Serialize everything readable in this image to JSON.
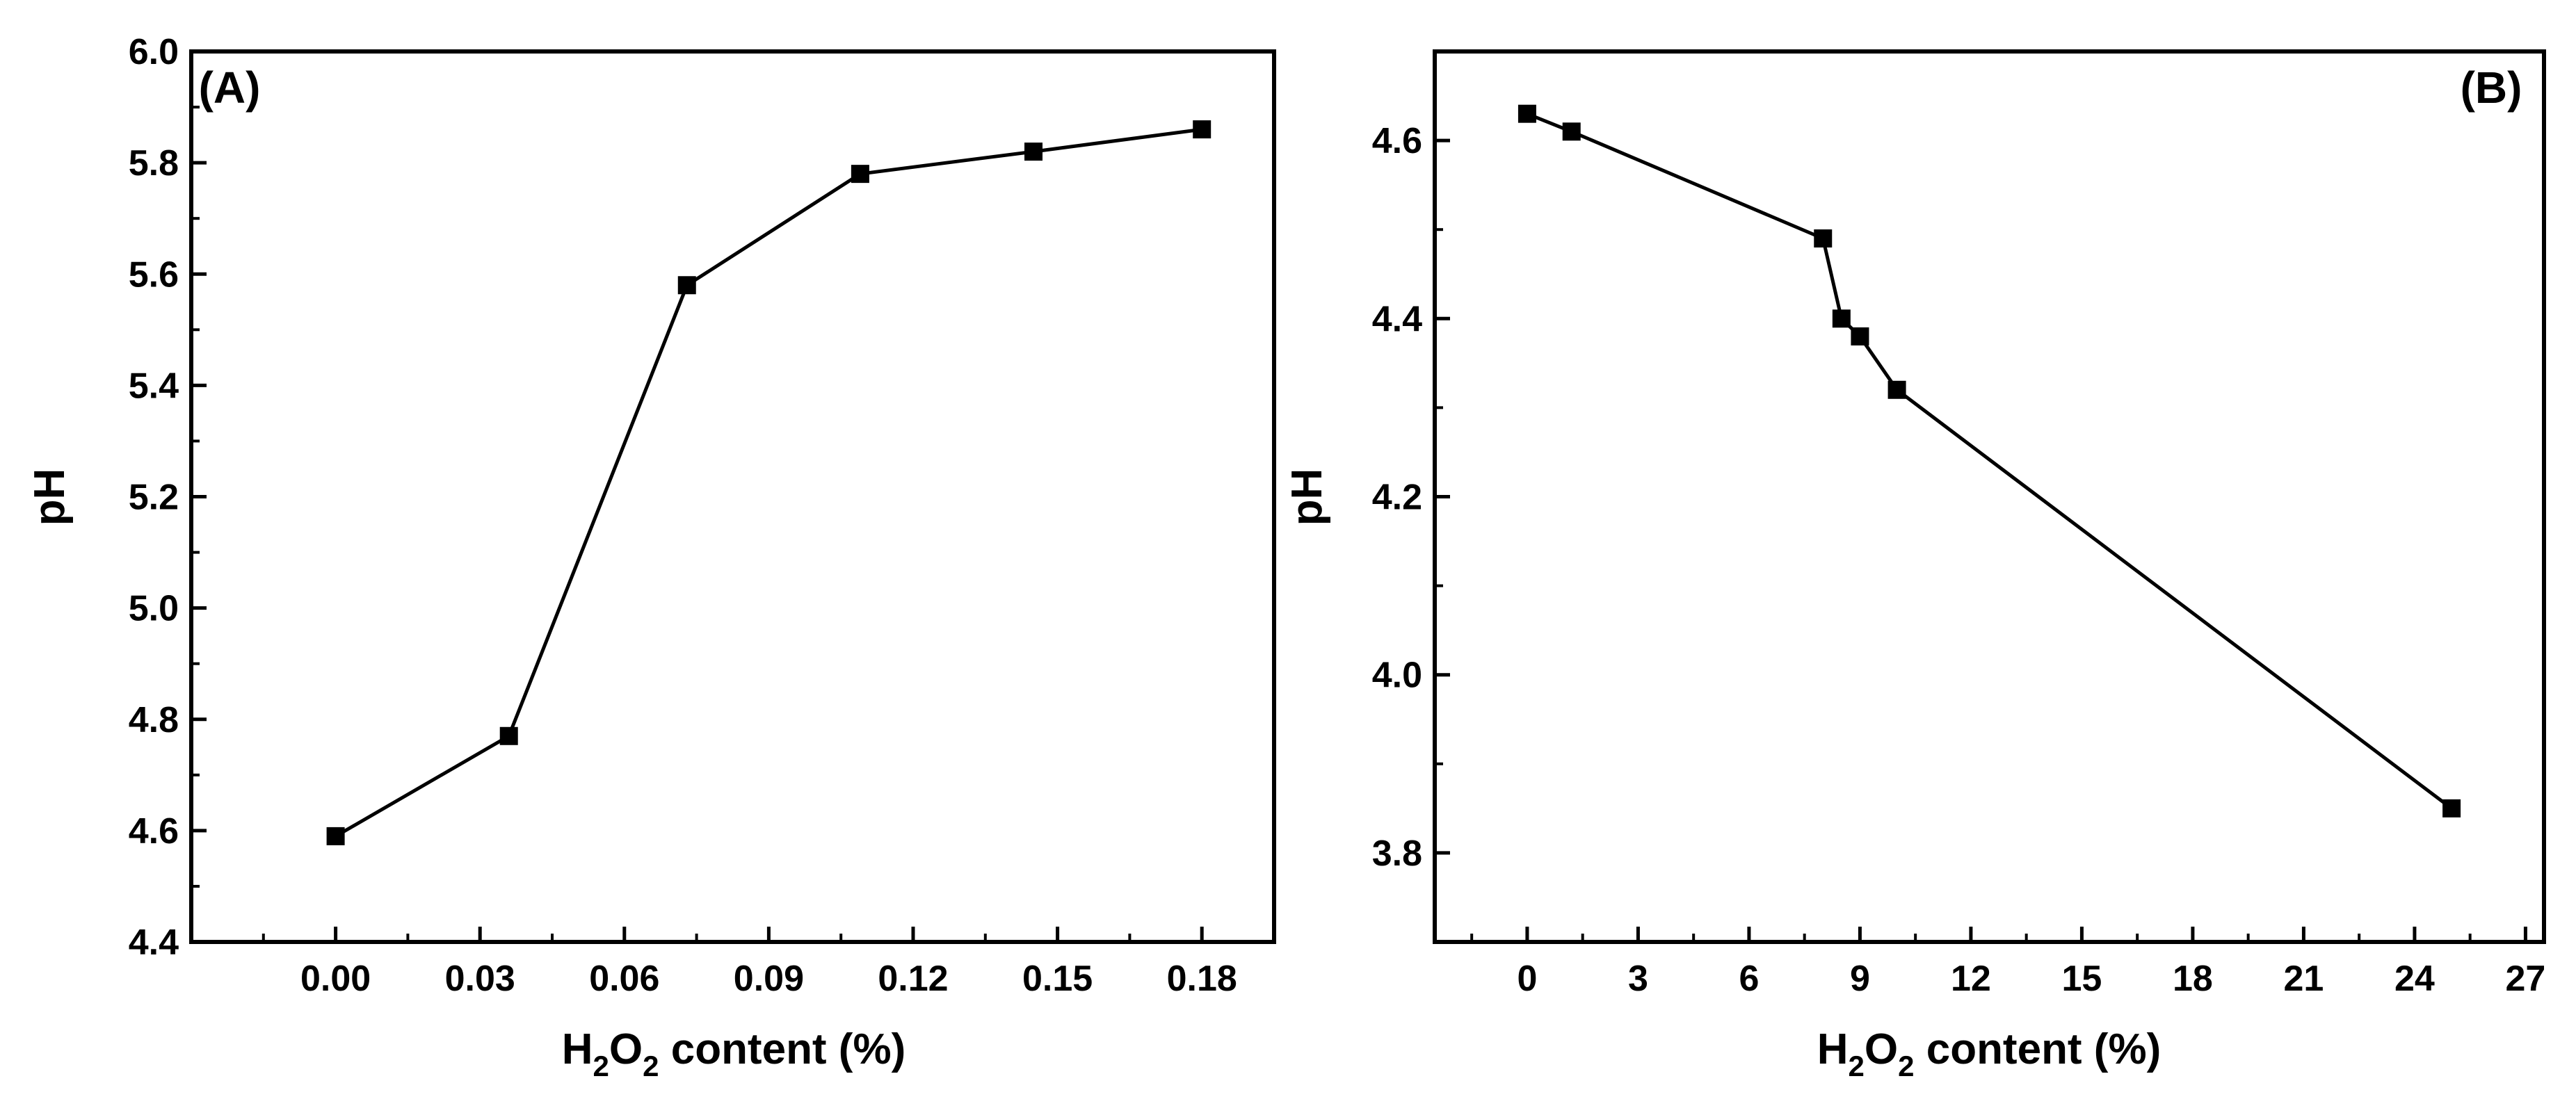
{
  "chart_data": [
    {
      "type": "line",
      "panel_label": "(A)",
      "xlabel": {
        "main": "H",
        "sub1": "2",
        "mid": "O",
        "sub2": "2",
        "rest": " content (%)"
      },
      "ylabel": "pH",
      "xlim": [
        -0.03,
        0.195
      ],
      "ylim": [
        4.4,
        6.0
      ],
      "xticks": [
        0.0,
        0.03,
        0.06,
        0.09,
        0.12,
        0.15,
        0.18
      ],
      "xtick_labels": [
        "0.00",
        "0.03",
        "0.06",
        "0.09",
        "0.12",
        "0.15",
        "0.18"
      ],
      "yticks": [
        4.4,
        4.6,
        4.8,
        5.0,
        5.2,
        5.4,
        5.6,
        5.8,
        6.0
      ],
      "ytick_labels": [
        "4.4",
        "4.6",
        "4.8",
        "5.0",
        "5.2",
        "5.4",
        "5.6",
        "5.8",
        "6.0"
      ],
      "grid": false,
      "marker": "square",
      "line_color": "#000000",
      "series": [
        {
          "x": [
            0.0,
            0.036,
            0.073,
            0.109,
            0.145,
            0.18
          ],
          "y": [
            4.59,
            4.77,
            5.58,
            5.78,
            5.82,
            5.86
          ]
        }
      ]
    },
    {
      "type": "line",
      "panel_label": "(B)",
      "xlabel": {
        "main": "H",
        "sub1": "2",
        "mid": "O",
        "sub2": "2",
        "rest": " content (%)"
      },
      "ylabel": "pH",
      "xlim": [
        -2.5,
        27.5
      ],
      "ylim": [
        3.7,
        4.7
      ],
      "xticks": [
        0,
        3,
        6,
        9,
        12,
        15,
        18,
        21,
        24,
        27
      ],
      "xtick_labels": [
        "0",
        "3",
        "6",
        "9",
        "12",
        "15",
        "18",
        "21",
        "24",
        "27"
      ],
      "yticks": [
        3.8,
        4.0,
        4.2,
        4.4,
        4.6
      ],
      "ytick_labels": [
        "3.8",
        "4.0",
        "4.2",
        "4.4",
        "4.6"
      ],
      "grid": false,
      "marker": "square",
      "line_color": "#000000",
      "series": [
        {
          "x": [
            0.0,
            1.2,
            8.0,
            8.5,
            9.0,
            10.0,
            25.0
          ],
          "y": [
            4.63,
            4.61,
            4.49,
            4.4,
            4.38,
            4.32,
            3.85
          ]
        }
      ]
    }
  ]
}
